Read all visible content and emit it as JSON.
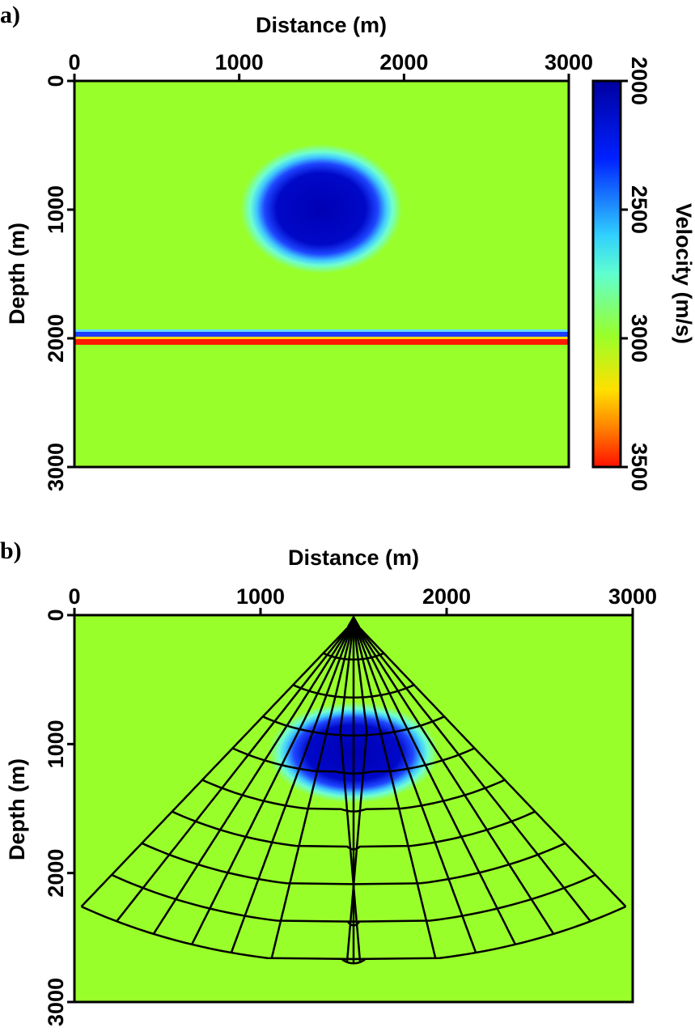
{
  "chart_data": [
    {
      "type": "heatmap",
      "panel_label": "a)",
      "xlabel": "Distance (m)",
      "ylabel": "Depth (m)",
      "xlim": [
        0,
        3000
      ],
      "ylim": [
        0,
        3000
      ],
      "xticks": [
        "0",
        "1000",
        "2000",
        "3000"
      ],
      "yticks": [
        "0",
        "1000",
        "2000",
        "3000"
      ],
      "background_velocity": 3000,
      "anomaly": {
        "center_x": 1500,
        "center_z": 1000,
        "min_velocity": 2000
      },
      "layer": {
        "depth": 2000,
        "upper_velocity": 2000,
        "lower_velocity": 3500
      },
      "colorbar": {
        "label": "Velocity (m/s)",
        "range": [
          2000,
          3500
        ],
        "ticks": [
          "2000",
          "2500",
          "3000",
          "3500"
        ]
      }
    },
    {
      "type": "heatmap",
      "panel_label": "b)",
      "xlabel": "Distance (m)",
      "ylabel": "Depth (m)",
      "xlim": [
        0,
        3000
      ],
      "ylim": [
        0,
        3000
      ],
      "xticks": [
        "0",
        "1000",
        "2000",
        "3000"
      ],
      "yticks": [
        "0",
        "1000",
        "2000",
        "3000"
      ],
      "source": {
        "x": 1500,
        "z": 50
      },
      "overlay": "ray paths and wavefronts",
      "caustic_depth": 2100
    }
  ],
  "colors": {
    "background": "#99ff2a",
    "dark_blue": "#0000b4",
    "blue": "#1e3cff",
    "cyan": "#50ffff",
    "yellow": "#ffd800",
    "red": "#ff1a00"
  }
}
